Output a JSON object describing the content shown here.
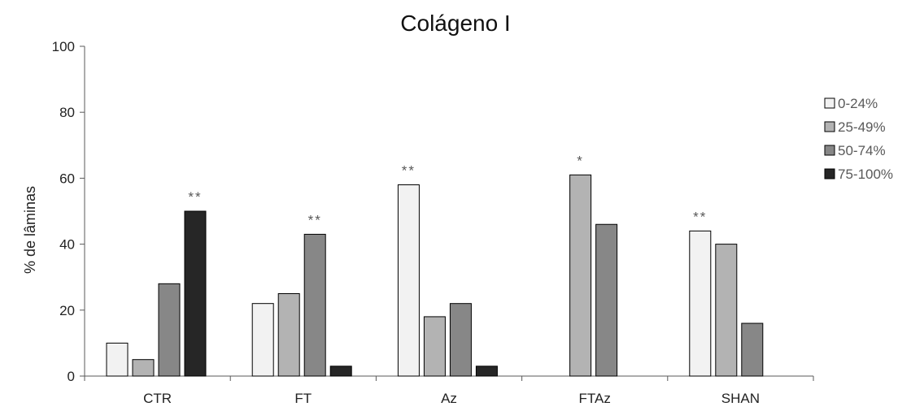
{
  "chart_data": {
    "type": "bar",
    "title": "Colágeno I",
    "xlabel": "",
    "ylabel": "% de lâminas",
    "ylim": [
      0,
      100
    ],
    "yticks": [
      0,
      20,
      40,
      60,
      80,
      100
    ],
    "categories": [
      "CTR",
      "FT",
      "Az",
      "FTAz",
      "SHAN"
    ],
    "series": [
      {
        "name": "0-24%",
        "color": "#f2f2f2",
        "values": [
          10,
          22,
          58,
          0,
          44
        ]
      },
      {
        "name": "25-49%",
        "color": "#b3b3b3",
        "values": [
          5,
          25,
          18,
          61,
          40
        ]
      },
      {
        "name": "50-74%",
        "color": "#878787",
        "values": [
          28,
          43,
          22,
          46,
          16
        ]
      },
      {
        "name": "75-100%",
        "color": "#262626",
        "values": [
          50,
          3,
          3,
          0,
          0
        ]
      }
    ],
    "annotations": [
      {
        "text": "**",
        "category": "CTR",
        "series": "75-100%"
      },
      {
        "text": "**",
        "category": "FT",
        "series": "50-74%"
      },
      {
        "text": "**",
        "category": "Az",
        "series": "0-24%"
      },
      {
        "text": "*",
        "category": "FTAz",
        "series": "25-49%"
      },
      {
        "text": "**",
        "category": "SHAN",
        "series": "0-24%"
      }
    ],
    "legend_position": "right",
    "grid": false
  }
}
